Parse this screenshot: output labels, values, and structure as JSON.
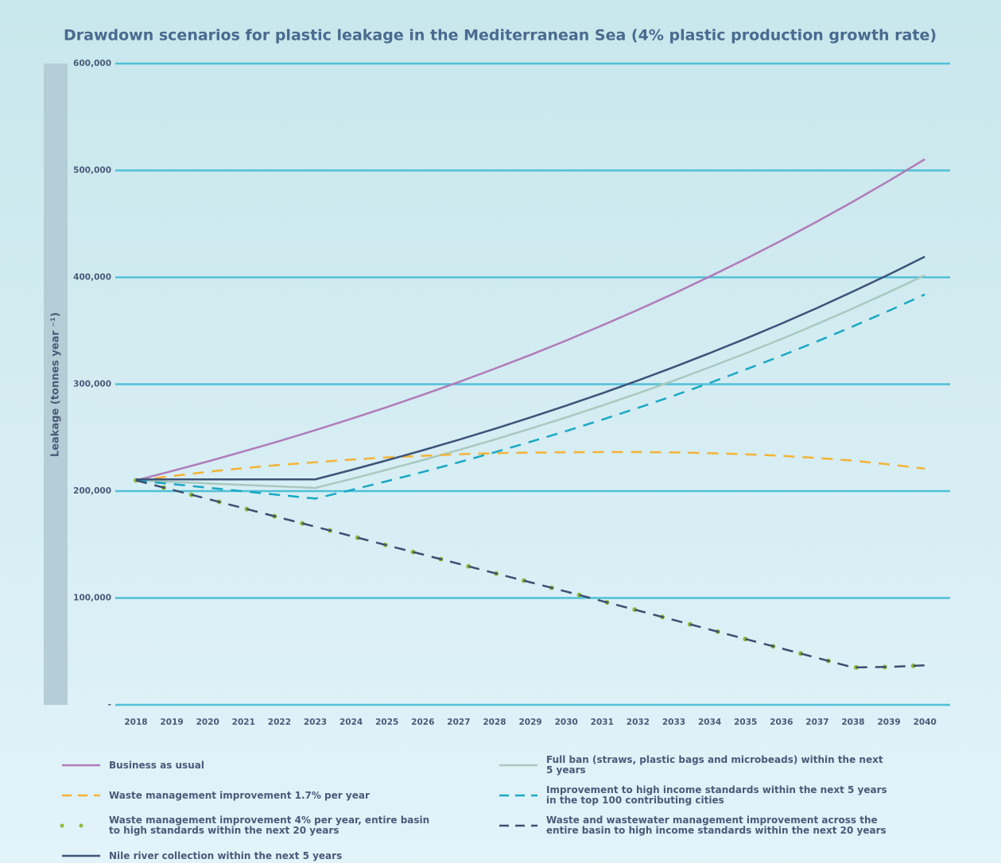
{
  "chart_data": {
    "type": "line",
    "title": "Drawdown scenarios for plastic leakage in the Mediterranean Sea (4% plastic production growth rate)",
    "ylabel": "Leakage (tonnes year ⁻¹)",
    "categories": [
      "2018",
      "2019",
      "2020",
      "2021",
      "2022",
      "2023",
      "2024",
      "2025",
      "2026",
      "2027",
      "2028",
      "2029",
      "2030",
      "2031",
      "2032",
      "2033",
      "2034",
      "2035",
      "2036",
      "2037",
      "2038",
      "2039",
      "2040"
    ],
    "ylim": [
      0,
      600000
    ],
    "yticks": [
      {
        "value": 0,
        "label": "-"
      },
      {
        "value": 100000,
        "label": "100,000"
      },
      {
        "value": 200000,
        "label": "200,000"
      },
      {
        "value": 300000,
        "label": "300,000"
      },
      {
        "value": 400000,
        "label": "400,000"
      },
      {
        "value": 500000,
        "label": "500,000"
      },
      {
        "value": 600000,
        "label": "600,000"
      }
    ],
    "grid": true,
    "series": [
      {
        "name": "Business as usual",
        "color": "#b07cb8",
        "dash": "solid",
        "values": [
          210000,
          218700,
          227700,
          237100,
          246800,
          257000,
          267600,
          278600,
          290100,
          302000,
          314500,
          327400,
          340900,
          355000,
          369600,
          384800,
          400700,
          417200,
          434400,
          452300,
          470900,
          490300,
          510500
        ]
      },
      {
        "name": "Full ban (straws, plastic bags and microbeads) within the next 5 years",
        "color": "#a9c9c0",
        "dash": "solid",
        "values": [
          210000,
          208600,
          207200,
          205800,
          204400,
          203000,
          211300,
          220000,
          229000,
          238400,
          248200,
          258400,
          269000,
          280000,
          291500,
          303400,
          315900,
          328800,
          342300,
          356400,
          371000,
          386200,
          402000
        ]
      },
      {
        "name": "Waste management improvement 1.7% per year",
        "color": "#f5b335",
        "dash": "dashed",
        "values": [
          210000,
          214000,
          218000,
          221500,
          224500,
          227000,
          229500,
          231500,
          233000,
          234500,
          235500,
          236000,
          236300,
          236500,
          236500,
          236200,
          235500,
          234500,
          233000,
          231000,
          228500,
          225000,
          221000
        ]
      },
      {
        "name": "Improvement to high income standards within the next 5 years in the top 100 contributing cities",
        "color": "#1aa8c4",
        "dash": "dashed",
        "values": [
          210000,
          206600,
          203200,
          199800,
          196400,
          193000,
          201000,
          209300,
          217900,
          226900,
          236300,
          246100,
          256200,
          266800,
          277800,
          289300,
          301200,
          313700,
          326600,
          340100,
          354200,
          368800,
          384000
        ]
      },
      {
        "name": "Waste management improvement 4% per year, entire basin to high standards within the next 20 years",
        "color": "#8dbb3c",
        "dash": "dotted",
        "values": [
          210000,
          201300,
          192700,
          184000,
          175300,
          166700,
          158000,
          149300,
          140700,
          132000,
          123300,
          114700,
          106000,
          97100,
          88300,
          79400,
          70500,
          61600,
          52800,
          43900,
          35000,
          35500,
          37000
        ]
      },
      {
        "name": "Waste and wastewater management improvement across the entire basin to high income standards within the next 20 years",
        "color": "#3d4f72",
        "dash": "dashed",
        "values": [
          210000,
          201300,
          192700,
          184000,
          175300,
          166700,
          158000,
          149300,
          140700,
          132000,
          123300,
          114700,
          106000,
          97100,
          88300,
          79400,
          70500,
          61600,
          52800,
          43900,
          35000,
          35500,
          37000
        ]
      },
      {
        "name": "Nile river collection within the next 5 years",
        "color": "#3d5478",
        "dash": "solid",
        "values": [
          211000,
          211000,
          211000,
          211000,
          211000,
          211000,
          219700,
          228800,
          238200,
          248000,
          258200,
          268900,
          280000,
          291500,
          303500,
          316000,
          329100,
          342600,
          356700,
          371400,
          386800,
          402700,
          419300
        ]
      }
    ]
  }
}
